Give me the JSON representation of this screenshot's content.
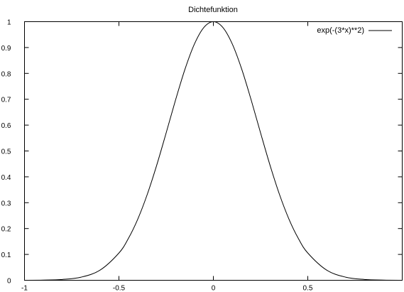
{
  "chart_data": {
    "type": "line",
    "title": "Dichtefunktion",
    "xlabel": "",
    "ylabel": "",
    "xlim": [
      -1,
      1
    ],
    "ylim": [
      0,
      1
    ],
    "x_ticks": [
      -1,
      -0.5,
      0,
      0.5,
      1
    ],
    "x_tick_labels": [
      "-1",
      "-0.5",
      "0",
      "0.5",
      ""
    ],
    "y_ticks": [
      0,
      0.1,
      0.2,
      0.3,
      0.4,
      0.5,
      0.6,
      0.7,
      0.8,
      0.9,
      1
    ],
    "y_tick_labels": [
      "0",
      "0.1",
      "0.2",
      "0.3",
      "0.4",
      "0.5",
      "0.6",
      "0.7",
      "0.8",
      "0.9",
      "1"
    ],
    "grid": false,
    "legend_position": "top-right",
    "series": [
      {
        "name": "exp(-(3*x)**2)",
        "color": "#000000",
        "x": [
          -1,
          -0.9,
          -0.8,
          -0.7,
          -0.6,
          -0.5,
          -0.45,
          -0.4,
          -0.35,
          -0.3,
          -0.25,
          -0.2,
          -0.15,
          -0.1,
          -0.05,
          0,
          0.05,
          0.1,
          0.15,
          0.2,
          0.25,
          0.3,
          0.35,
          0.4,
          0.45,
          0.5,
          0.6,
          0.7,
          0.8,
          0.9,
          1
        ],
        "y": [
          0.0001,
          0.0007,
          0.0032,
          0.0121,
          0.0392,
          0.1054,
          0.1616,
          0.2369,
          0.3321,
          0.4449,
          0.5698,
          0.6977,
          0.8167,
          0.9139,
          0.9778,
          1.0,
          0.9778,
          0.9139,
          0.8167,
          0.6977,
          0.5698,
          0.4449,
          0.3321,
          0.2369,
          0.1616,
          0.1054,
          0.0392,
          0.0121,
          0.0032,
          0.0007,
          0.0001
        ]
      }
    ]
  }
}
